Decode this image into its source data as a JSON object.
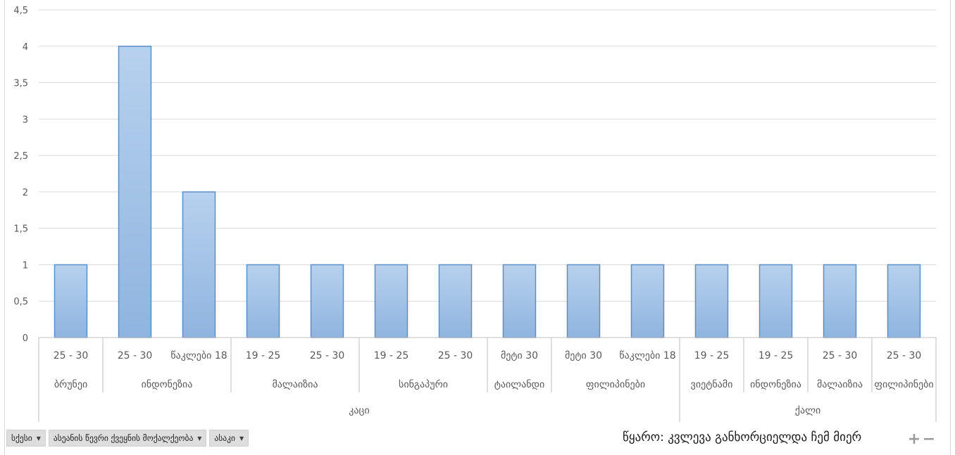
{
  "chart_data": {
    "type": "bar",
    "ylim": [
      0,
      4.5
    ],
    "yticks": [
      "0",
      "0,5",
      "1",
      "1,5",
      "2",
      "2,5",
      "3",
      "3,5",
      "4",
      "4,5"
    ],
    "grid": true,
    "bar_color": "#9dc3e6",
    "bar_border": "#5b8fc9",
    "categories": [
      "25 - 30",
      "25 - 30",
      "წაკლები 18",
      "19 - 25",
      "25 - 30",
      "19 - 25",
      "25 - 30",
      "მეტი 30",
      "მეტი 30",
      "წაკლები 18",
      "19 - 25",
      "19 - 25",
      "25 - 30",
      "25 - 30"
    ],
    "values": [
      1,
      4,
      2,
      1,
      1,
      1,
      1,
      1,
      1,
      1,
      1,
      1,
      1,
      1
    ],
    "country_groups": [
      {
        "label": "ბრუნეი",
        "start": 0,
        "count": 1
      },
      {
        "label": "ინდონეზია",
        "start": 1,
        "count": 2
      },
      {
        "label": "მალაიზია",
        "start": 3,
        "count": 2
      },
      {
        "label": "სინგაპური",
        "start": 5,
        "count": 2
      },
      {
        "label": "ტაილანდი",
        "start": 7,
        "count": 1
      },
      {
        "label": "ფილიპინები",
        "start": 8,
        "count": 2
      },
      {
        "label": "ვიეტნამი",
        "start": 10,
        "count": 1
      },
      {
        "label": "ინდონეზია",
        "start": 11,
        "count": 1
      },
      {
        "label": "მალაიზია",
        "start": 12,
        "count": 1
      },
      {
        "label": "ფილიპინები",
        "start": 13,
        "count": 1
      }
    ],
    "gender_groups": [
      {
        "label": "კაცი",
        "start": 0,
        "count": 10
      },
      {
        "label": "ქალი",
        "start": 10,
        "count": 4
      }
    ]
  },
  "filters": {
    "gender": "სქესი",
    "citizenship": "ასეანის წევრი ქვეყნის მოქალქეობა",
    "age": "ასაკი"
  },
  "source_text": "წყარო: კვლევა განხორციელდა ჩემ მიერ",
  "zoom": {
    "plus": "+",
    "minus": "−"
  }
}
